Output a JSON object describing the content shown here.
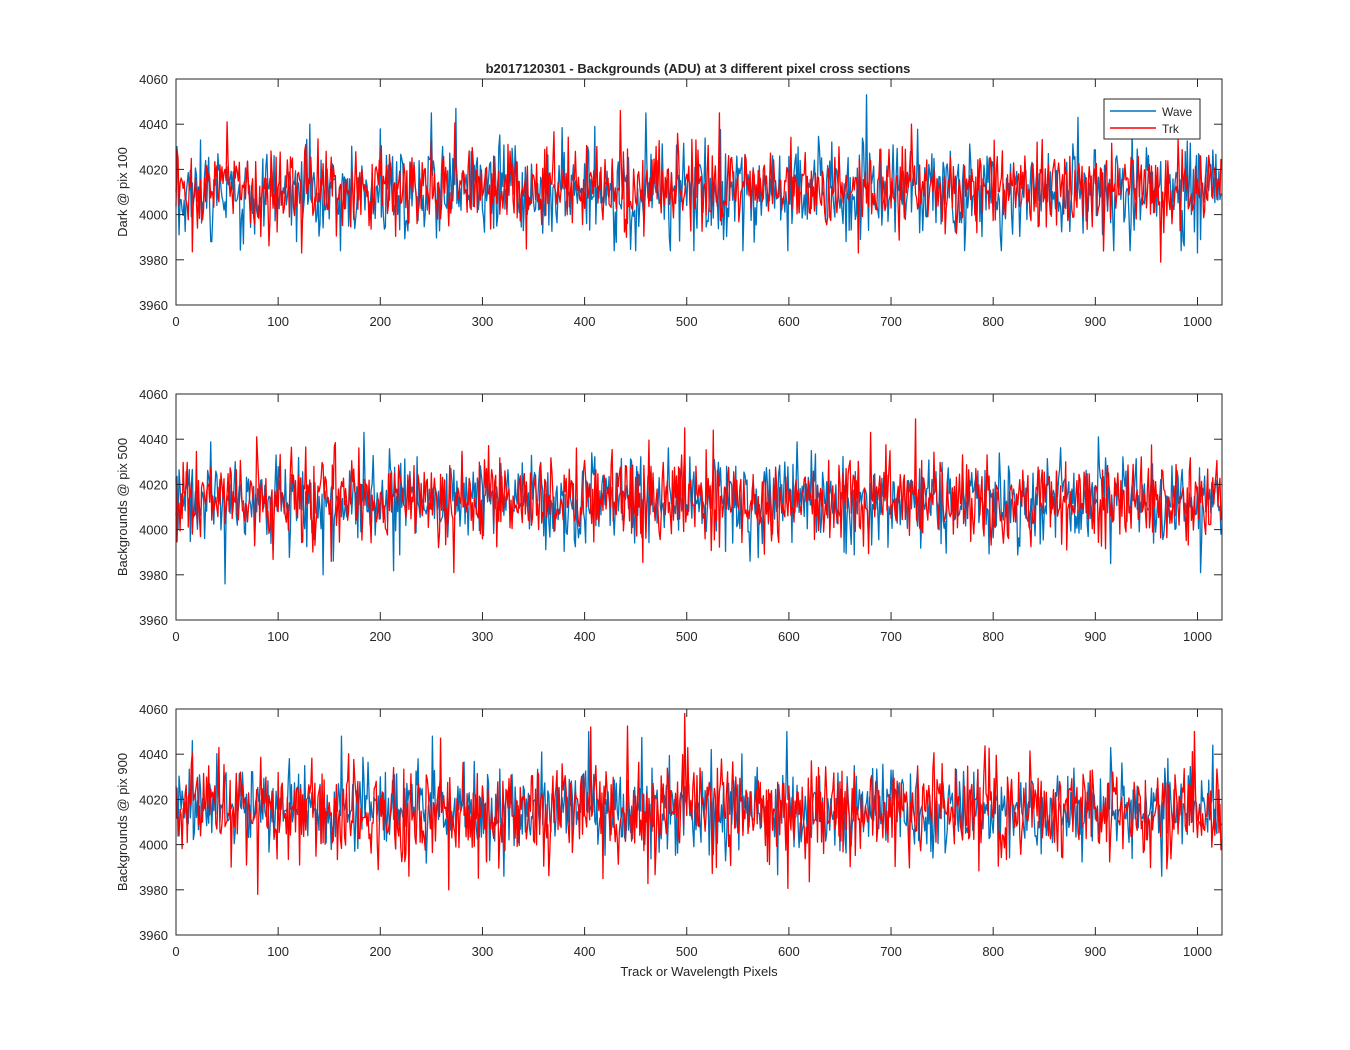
{
  "figure": {
    "title": "b2017120301 - Backgrounds (ADU) at 3 different pixel cross sections",
    "xlabel": "Track or Wavelength Pixels",
    "legend": {
      "entries": [
        "Wave",
        "Trk"
      ],
      "placement": "top-right"
    },
    "colors": {
      "Wave": "#0072BD",
      "Trk": "#FF0000",
      "axis": "#262626",
      "background": "#FFFFFF"
    }
  },
  "chart_data": [
    {
      "type": "line",
      "ylabel": "Dark @ pix 100",
      "xlim": [
        0,
        1024
      ],
      "ylim": [
        3960,
        4060
      ],
      "xticks": [
        0,
        100,
        200,
        300,
        400,
        500,
        600,
        700,
        800,
        900,
        1000
      ],
      "yticks": [
        3960,
        3980,
        4000,
        4020,
        4040,
        4060
      ],
      "grid": false,
      "legend": true,
      "series": [
        {
          "name": "Wave",
          "n_points": 1024,
          "mean": 4010,
          "range": [
            3982,
            4053
          ],
          "spikes": [
            [
              24,
              4033
            ],
            [
              131,
              4040
            ],
            [
              250,
              4045
            ],
            [
              274,
              4047
            ],
            [
              460,
              4045
            ],
            [
              676,
              4053
            ],
            [
              883,
              4043
            ],
            [
              1000,
              3983
            ]
          ]
        },
        {
          "name": "Trk",
          "n_points": 1024,
          "mean": 4012,
          "range": [
            3979,
            4045
          ],
          "spikes": [
            [
              50,
              4041
            ],
            [
              123,
              3983
            ],
            [
              435,
              4046
            ],
            [
              532,
              4045
            ],
            [
              668,
              3983
            ],
            [
              720,
              4040
            ],
            [
              964,
              3979
            ]
          ]
        }
      ]
    },
    {
      "type": "line",
      "ylabel": "Backgrounds @ pix 500",
      "xlim": [
        0,
        1024
      ],
      "ylim": [
        3960,
        4060
      ],
      "xticks": [
        0,
        100,
        200,
        300,
        400,
        500,
        600,
        700,
        800,
        900,
        1000
      ],
      "yticks": [
        3960,
        3980,
        4000,
        4020,
        4040,
        4060
      ],
      "grid": false,
      "legend": false,
      "series": [
        {
          "name": "Wave",
          "n_points": 1024,
          "mean": 4013,
          "range": [
            3976,
            4043
          ],
          "spikes": [
            [
              48,
              3976
            ],
            [
              144,
              3980
            ],
            [
              184,
              4043
            ],
            [
              562,
              3986
            ],
            [
              903,
              4041
            ]
          ]
        },
        {
          "name": "Trk",
          "n_points": 1024,
          "mean": 4013,
          "range": [
            3981,
            4049
          ],
          "spikes": [
            [
              79,
              4041
            ],
            [
              272,
              3981
            ],
            [
              498,
              4045
            ],
            [
              526,
              4044
            ],
            [
              724,
              4049
            ],
            [
              680,
              4043
            ]
          ]
        }
      ]
    },
    {
      "type": "line",
      "ylabel": "Backgrounds @ pix 900",
      "xlim": [
        0,
        1024
      ],
      "ylim": [
        3960,
        4060
      ],
      "xticks": [
        0,
        100,
        200,
        300,
        400,
        500,
        600,
        700,
        800,
        900,
        1000
      ],
      "yticks": [
        3960,
        3980,
        4000,
        4020,
        4040,
        4060
      ],
      "grid": false,
      "legend": false,
      "series": [
        {
          "name": "Wave",
          "n_points": 1024,
          "mean": 4016,
          "range": [
            3984,
            4050
          ],
          "spikes": [
            [
              16,
              4046
            ],
            [
              162,
              4048
            ],
            [
              251,
              4048
            ],
            [
              404,
              4050
            ],
            [
              598,
              4050
            ],
            [
              1015,
              4044
            ]
          ]
        },
        {
          "name": "Trk",
          "n_points": 1024,
          "mean": 4015,
          "range": [
            3978,
            4058
          ],
          "spikes": [
            [
              80,
              3978
            ],
            [
              406,
              4052
            ],
            [
              498,
              4058
            ],
            [
              228,
              3986
            ]
          ]
        }
      ]
    }
  ]
}
